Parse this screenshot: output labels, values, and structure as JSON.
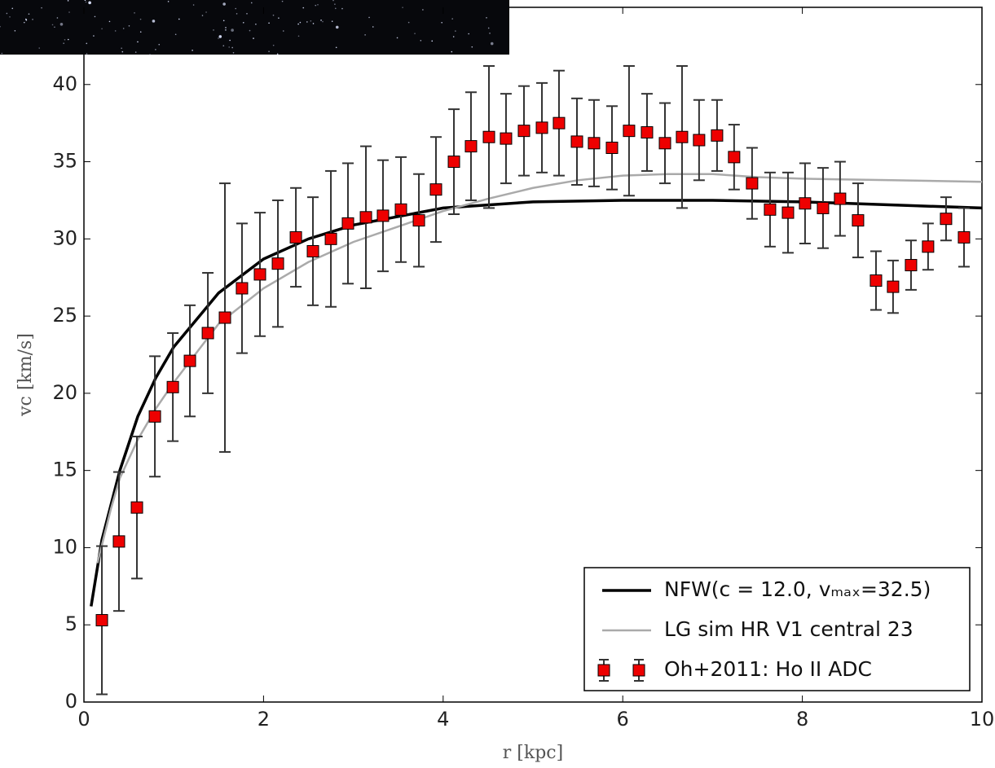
{
  "chart_data": {
    "type": "line",
    "xlabel": "r  [kpc]",
    "ylabel": "vc  [km/s]",
    "xlim": [
      0,
      10
    ],
    "ylim": [
      0,
      45
    ],
    "xticks": [
      0,
      2,
      4,
      6,
      8,
      10
    ],
    "yticks": [
      0,
      5,
      10,
      15,
      20,
      25,
      30,
      35,
      40
    ],
    "legend": "lower right",
    "series": [
      {
        "name": "NFW(c = 12.0, vₘₐₓ=32.5)",
        "color": "#000000",
        "mark": "line",
        "x": [
          0.08,
          0.2,
          0.4,
          0.6,
          0.8,
          1.0,
          1.5,
          2.0,
          2.5,
          3.0,
          4.0,
          5.0,
          6.0,
          7.0,
          8.0,
          9.0,
          10.0
        ],
        "values": [
          6.2,
          10.5,
          15.0,
          18.5,
          21.0,
          23.0,
          26.5,
          28.7,
          30.0,
          30.9,
          32.0,
          32.4,
          32.5,
          32.5,
          32.4,
          32.2,
          32.0
        ]
      },
      {
        "name": "LG sim HR V1 central 23",
        "color": "#aaaaaa",
        "mark": "line",
        "x": [
          0.15,
          0.3,
          0.4,
          0.6,
          0.8,
          1.0,
          1.5,
          2.0,
          2.5,
          3.0,
          3.5,
          4.0,
          4.5,
          5.0,
          5.5,
          6.0,
          6.5,
          7.0,
          7.5,
          8.0,
          9.0,
          10.0
        ],
        "values": [
          9.0,
          12.5,
          14.5,
          17.0,
          19.0,
          20.7,
          24.5,
          26.8,
          28.5,
          29.8,
          30.8,
          31.8,
          32.6,
          33.3,
          33.8,
          34.1,
          34.2,
          34.2,
          34.0,
          33.9,
          33.8,
          33.7
        ]
      },
      {
        "name": "Oh+2011: Ho II ADC",
        "color": "#ee0000",
        "mark": "errorbar",
        "x": [
          0.2,
          0.39,
          0.59,
          0.79,
          0.99,
          1.18,
          1.38,
          1.57,
          1.76,
          1.96,
          2.16,
          2.36,
          2.55,
          2.75,
          2.94,
          3.14,
          3.33,
          3.53,
          3.73,
          3.92,
          4.12,
          4.31,
          4.51,
          4.7,
          4.9,
          5.1,
          5.29,
          5.49,
          5.68,
          5.88,
          6.07,
          6.27,
          6.47,
          6.66,
          6.85,
          7.05,
          7.24,
          7.44,
          7.64,
          7.84,
          8.03,
          8.23,
          8.42,
          8.62,
          8.82,
          9.01,
          9.21,
          9.4,
          9.6,
          9.8
        ],
        "values": [
          5.3,
          10.4,
          12.6,
          18.5,
          20.4,
          22.1,
          23.9,
          24.9,
          26.8,
          27.7,
          28.4,
          30.1,
          29.2,
          30.0,
          31.0,
          31.4,
          31.5,
          31.9,
          31.2,
          33.2,
          35.0,
          36.0,
          36.6,
          36.5,
          37.0,
          37.2,
          37.5,
          36.3,
          36.2,
          35.9,
          37.0,
          36.9,
          36.2,
          36.6,
          36.4,
          36.7,
          35.3,
          33.6,
          31.9,
          31.7,
          32.3,
          32.0,
          32.6,
          31.2,
          27.3,
          26.9,
          28.3,
          29.5,
          31.3,
          30.1
        ],
        "errors": [
          4.8,
          4.5,
          4.6,
          3.9,
          3.5,
          3.6,
          3.9,
          8.7,
          4.2,
          4.0,
          4.1,
          3.2,
          3.5,
          4.4,
          3.9,
          4.6,
          3.6,
          3.4,
          3.0,
          3.4,
          3.4,
          3.5,
          4.6,
          2.9,
          2.9,
          2.9,
          3.4,
          2.8,
          2.8,
          2.7,
          4.2,
          2.5,
          2.6,
          4.6,
          2.6,
          2.3,
          2.1,
          2.3,
          2.4,
          2.6,
          2.6,
          2.6,
          2.4,
          2.4,
          1.9,
          1.7,
          1.6,
          1.5,
          1.4,
          1.9
        ]
      }
    ]
  }
}
